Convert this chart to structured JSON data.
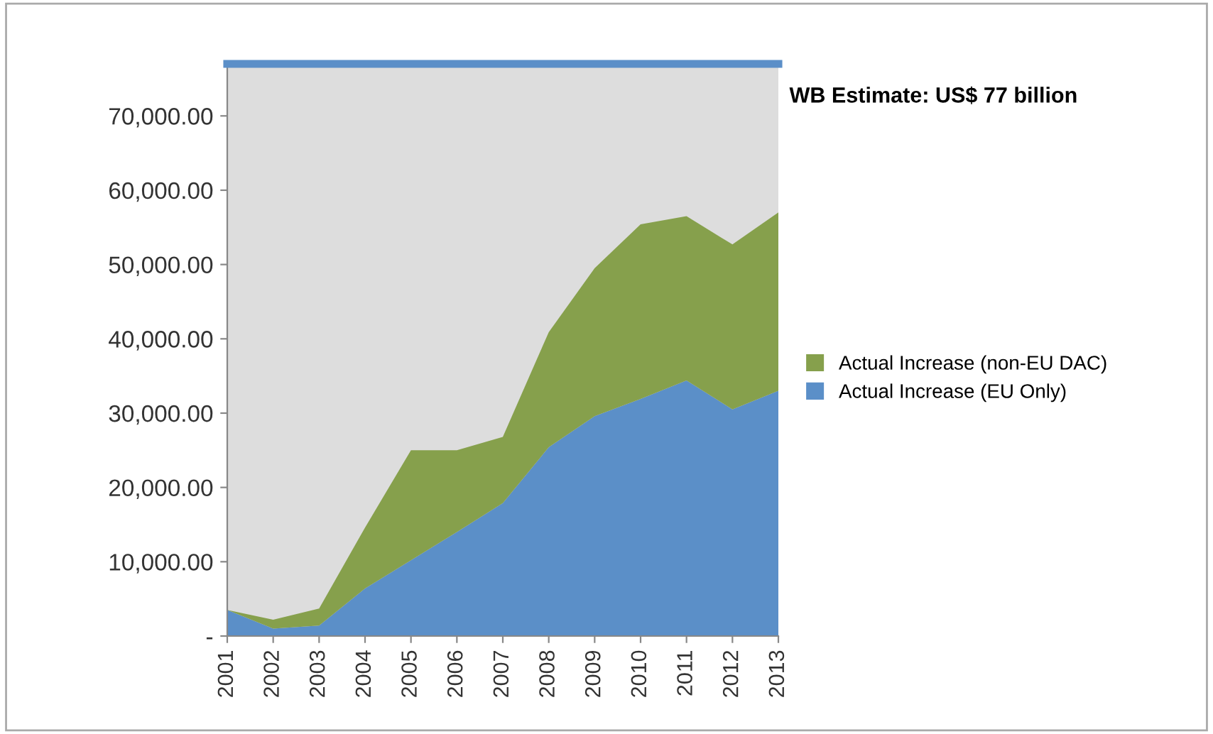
{
  "chart_data": {
    "type": "area",
    "stacked": true,
    "categories": [
      "2001",
      "2002",
      "2003",
      "2004",
      "2005",
      "2006",
      "2007",
      "2008",
      "2009",
      "2010",
      "2011",
      "2012",
      "2013"
    ],
    "series": [
      {
        "name": "Actual Increase (EU Only)",
        "color": "#5b8fc8",
        "values": [
          3500,
          1000,
          1400,
          6400,
          10200,
          14000,
          17900,
          25400,
          29600,
          31900,
          34400,
          30500,
          33000
        ]
      },
      {
        "name": "Actual Increase (non-EU DAC)",
        "color": "#86a04c",
        "values": [
          0,
          1200,
          2300,
          8200,
          14800,
          11000,
          8900,
          15500,
          19900,
          23500,
          22100,
          22200,
          24000
        ]
      }
    ],
    "ylim": [
      0,
      77000
    ],
    "yticks": [
      {
        "value": 0,
        "label": "-"
      },
      {
        "value": 10000,
        "label": "10,000.00"
      },
      {
        "value": 20000,
        "label": "20,000.00"
      },
      {
        "value": 30000,
        "label": "30,000.00"
      },
      {
        "value": 40000,
        "label": "40,000.00"
      },
      {
        "value": 50000,
        "label": "50,000.00"
      },
      {
        "value": 60000,
        "label": "60,000.00"
      },
      {
        "value": 70000,
        "label": "70,000.00"
      }
    ],
    "bands": [
      {
        "axis": "y",
        "from": 0,
        "to": 77000,
        "color": "#dddddd"
      }
    ],
    "ref_lines": [
      {
        "axis": "y",
        "value": 77000,
        "label": "WB Estimate: US$ 77 billion",
        "color": "#5b8fc8"
      }
    ],
    "legend": "right",
    "grid": false
  }
}
